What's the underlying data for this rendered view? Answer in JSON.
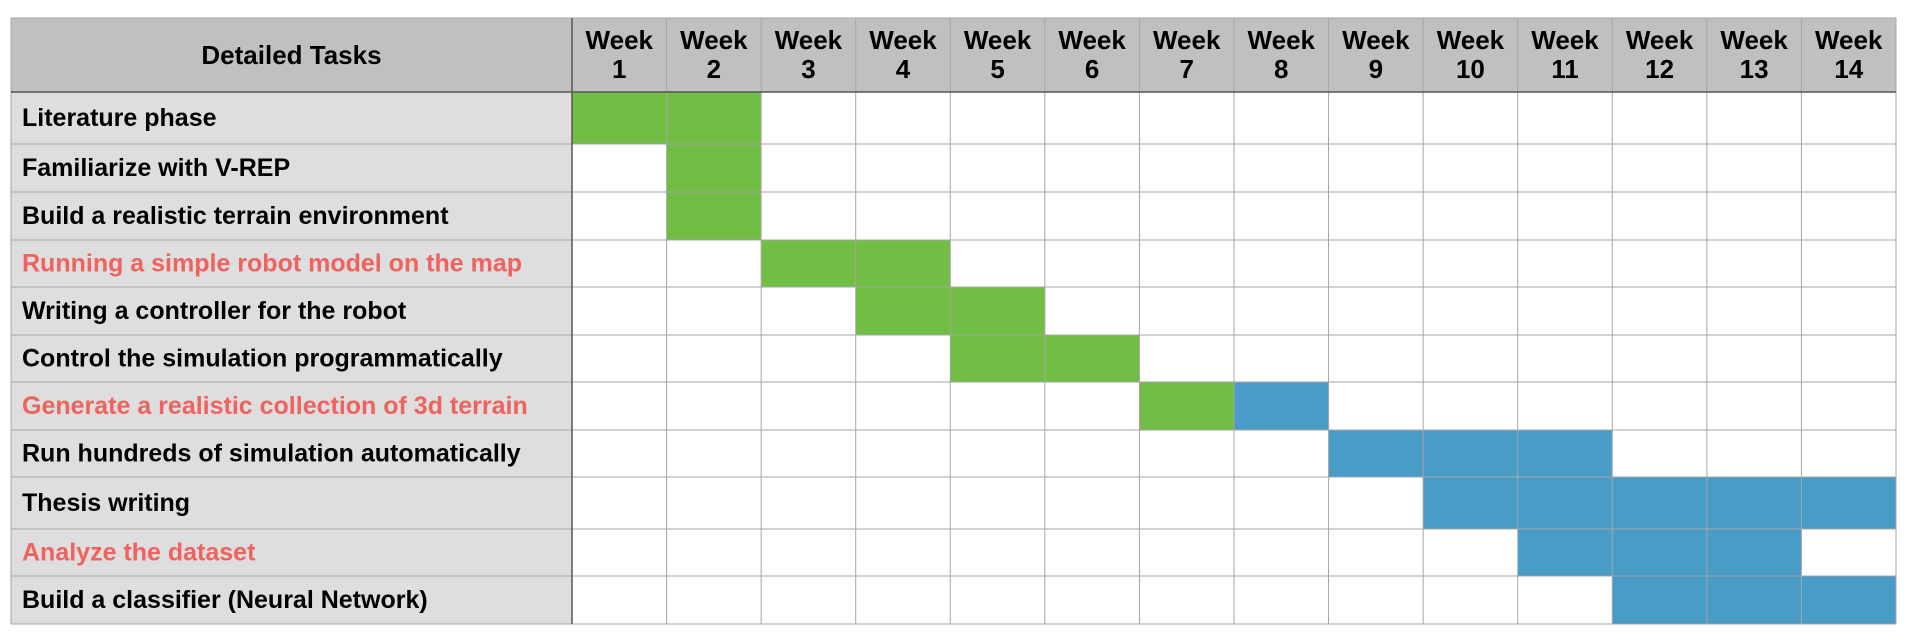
{
  "chart_data": {
    "type": "table",
    "corner_header": "Detailed Tasks",
    "week_label": "Week",
    "weeks": [
      "1",
      "2",
      "3",
      "4",
      "5",
      "6",
      "7",
      "8",
      "9",
      "10",
      "11",
      "12",
      "13",
      "14"
    ],
    "colors": {
      "phase1": "#70bf44",
      "phase2": "#4a9cc8",
      "highlight_text": "#f0625e",
      "normal_text": "#000000",
      "header_bg": "#bfc1c1",
      "task_bg": "#dedede"
    },
    "tasks": [
      {
        "label": "Literature phase",
        "highlight": false,
        "cells": [
          {
            "week": 1,
            "phase": "phase1"
          },
          {
            "week": 2,
            "phase": "phase1"
          }
        ]
      },
      {
        "label": "Familiarize with V-REP",
        "highlight": false,
        "cells": [
          {
            "week": 2,
            "phase": "phase1"
          }
        ]
      },
      {
        "label": "Build a realistic terrain environment",
        "highlight": false,
        "cells": [
          {
            "week": 2,
            "phase": "phase1"
          }
        ]
      },
      {
        "label": "Running a simple robot model on the map",
        "highlight": true,
        "cells": [
          {
            "week": 3,
            "phase": "phase1"
          },
          {
            "week": 4,
            "phase": "phase1"
          }
        ]
      },
      {
        "label": "Writing a controller for the robot",
        "highlight": false,
        "cells": [
          {
            "week": 4,
            "phase": "phase1"
          },
          {
            "week": 5,
            "phase": "phase1"
          }
        ]
      },
      {
        "label": "Control the simulation programmatically",
        "highlight": false,
        "cells": [
          {
            "week": 5,
            "phase": "phase1"
          },
          {
            "week": 6,
            "phase": "phase1"
          }
        ]
      },
      {
        "label": "Generate a realistic collection of 3d terrain",
        "highlight": true,
        "cells": [
          {
            "week": 7,
            "phase": "phase1"
          },
          {
            "week": 8,
            "phase": "phase2"
          }
        ]
      },
      {
        "label": "Run hundreds of simulation automatically",
        "highlight": false,
        "cells": [
          {
            "week": 9,
            "phase": "phase2"
          },
          {
            "week": 10,
            "phase": "phase2"
          },
          {
            "week": 11,
            "phase": "phase2"
          }
        ]
      },
      {
        "label": "Thesis writing",
        "highlight": false,
        "cells": [
          {
            "week": 10,
            "phase": "phase2"
          },
          {
            "week": 11,
            "phase": "phase2"
          },
          {
            "week": 12,
            "phase": "phase2"
          },
          {
            "week": 13,
            "phase": "phase2"
          },
          {
            "week": 14,
            "phase": "phase2"
          }
        ]
      },
      {
        "label": "Analyze the dataset",
        "highlight": true,
        "cells": [
          {
            "week": 11,
            "phase": "phase2"
          },
          {
            "week": 12,
            "phase": "phase2"
          },
          {
            "week": 13,
            "phase": "phase2"
          }
        ]
      },
      {
        "label": "Build a classifier (Neural Network)",
        "highlight": false,
        "cells": [
          {
            "week": 12,
            "phase": "phase2"
          },
          {
            "week": 13,
            "phase": "phase2"
          },
          {
            "week": 14,
            "phase": "phase2"
          }
        ]
      }
    ]
  }
}
